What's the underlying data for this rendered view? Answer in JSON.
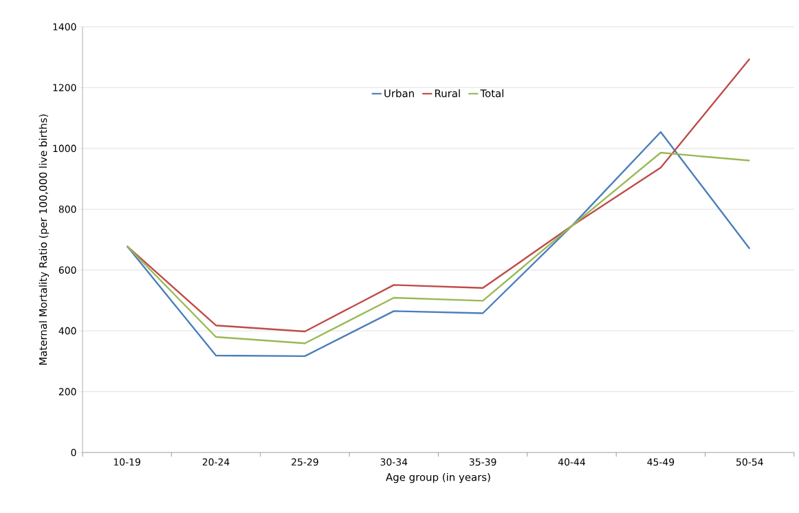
{
  "chart_data": {
    "type": "line",
    "xlabel": "Age group (in years)",
    "ylabel": "Maternal Mortality Ratio (per 100,000  live births)",
    "categories": [
      "10-19",
      "20-24",
      "25-29",
      "30-34",
      "35-39",
      "40-44",
      "45-49",
      "50-54"
    ],
    "series": [
      {
        "name": "Urban",
        "color": "#4a7ebb",
        "values": [
          679,
          319,
          317,
          465,
          458,
          745,
          1054,
          670
        ]
      },
      {
        "name": "Rural",
        "color": "#be4b48",
        "values": [
          679,
          418,
          398,
          551,
          541,
          745,
          937,
          1295
        ]
      },
      {
        "name": "Total",
        "color": "#98b954",
        "values": [
          679,
          380,
          359,
          509,
          499,
          745,
          986,
          960
        ]
      }
    ],
    "ylim": [
      0,
      1400
    ],
    "yticks": [
      0,
      200,
      400,
      600,
      800,
      1000,
      1200,
      1400
    ],
    "grid": "y",
    "legend": "top",
    "marker": "none",
    "line_style": "solid"
  }
}
